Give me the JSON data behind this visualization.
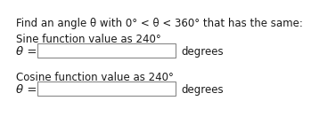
{
  "background_color": "#ffffff",
  "title_text": "Find an angle θ with 0° < θ < 360° that has the same:",
  "sine_label": "Sine function value as 240°",
  "cosine_label": "Cosine function value as 240°",
  "theta_label": "θ =",
  "degrees_label": "degrees",
  "box_facecolor": "#ffffff",
  "box_edgecolor": "#888888",
  "text_color": "#1a1a1a",
  "title_fontsize": 8.5,
  "label_fontsize": 8.5,
  "theta_fontsize": 9.5,
  "degrees_fontsize": 8.5
}
